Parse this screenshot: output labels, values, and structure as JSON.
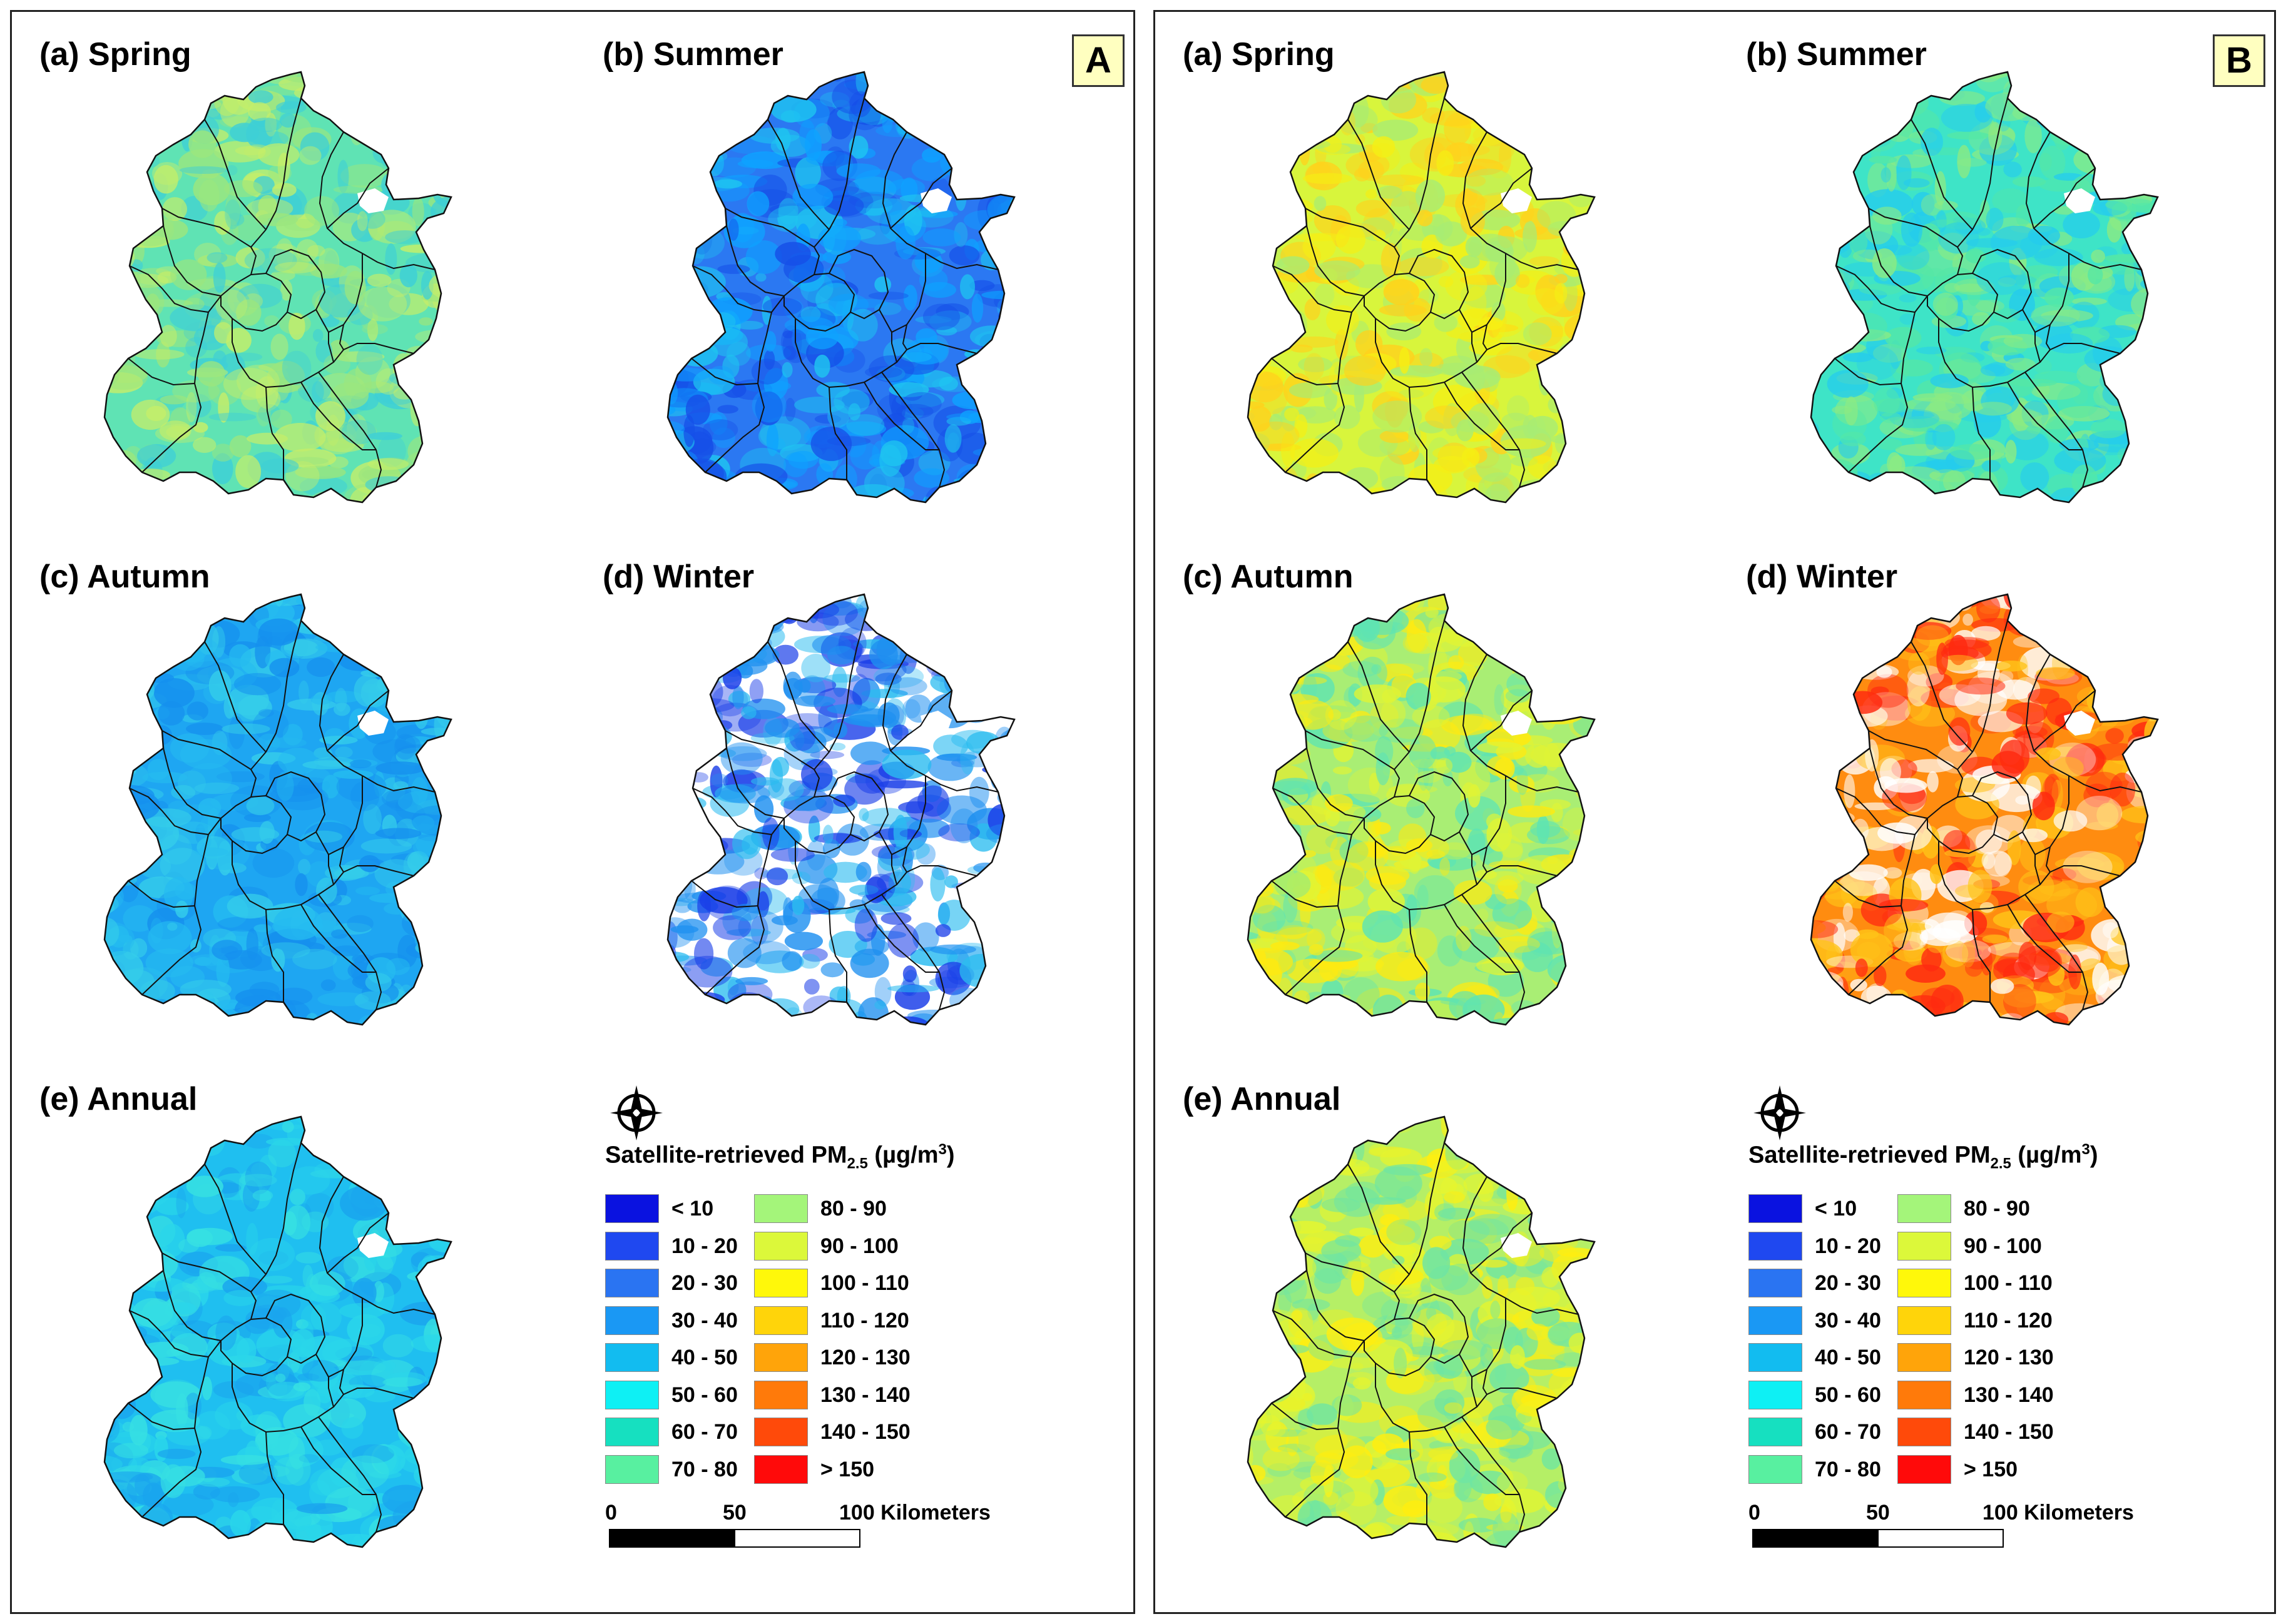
{
  "panels": [
    {
      "id": "A",
      "label": "A",
      "maps": [
        {
          "title": "(a) Spring",
          "colors": [
            "#5fe3b4",
            "#9be67e",
            "#3ecfd6",
            "#c4ee6a"
          ]
        },
        {
          "title": "(b) Summer",
          "colors": [
            "#2b78f2",
            "#0ea2ff",
            "#1fc4f0",
            "#1650e8"
          ]
        },
        {
          "title": "(c) Autumn",
          "colors": [
            "#1ea6f2",
            "#25bbf0",
            "#1590ee",
            "#35cdea"
          ]
        },
        {
          "title": "(d) Winter",
          "colors": [
            "#ffffff",
            "#1f90f0",
            "#2bbcf0",
            "#1a3ee8"
          ]
        },
        {
          "title": "(e) Annual",
          "colors": [
            "#1fbff0",
            "#2ad6ea",
            "#1aa4ee",
            "#37e0e2"
          ]
        }
      ]
    },
    {
      "id": "B",
      "label": "B",
      "maps": [
        {
          "title": "(a) Spring",
          "colors": [
            "#d8f53c",
            "#f5ef14",
            "#a7ec74",
            "#ffd21c"
          ]
        },
        {
          "title": "(b) Summer",
          "colors": [
            "#3ee4c7",
            "#55e7a6",
            "#25ccec",
            "#8deb82"
          ]
        },
        {
          "title": "(c) Autumn",
          "colors": [
            "#a9ee74",
            "#e0f435",
            "#5ee4b3",
            "#ffea10"
          ]
        },
        {
          "title": "(d) Winter",
          "colors": [
            "#ff8c10",
            "#ffffff",
            "#ff2a10",
            "#ffc418"
          ]
        },
        {
          "title": "(e) Annual",
          "colors": [
            "#b5ef66",
            "#e6f52e",
            "#6fe5a3",
            "#ffee10"
          ]
        }
      ]
    }
  ],
  "legend": {
    "title_main": "Satellite-retrieved PM",
    "title_sub": "2.5",
    "title_unit": " (µg/m",
    "title_sup": "3",
    "title_close": ")",
    "classes": [
      {
        "label": "< 10",
        "color": "#0a12e0"
      },
      {
        "label": "10 - 20",
        "color": "#1f48f0"
      },
      {
        "label": "20 - 30",
        "color": "#2a74f2"
      },
      {
        "label": "30 - 40",
        "color": "#1a98f4"
      },
      {
        "label": "40 - 50",
        "color": "#12bcf0"
      },
      {
        "label": "50 - 60",
        "color": "#0ef0f4"
      },
      {
        "label": "60 - 70",
        "color": "#16e0c0"
      },
      {
        "label": "70 - 80",
        "color": "#58f0a0"
      },
      {
        "label": "80 - 90",
        "color": "#a4f57a"
      },
      {
        "label": "90 - 100",
        "color": "#dcf83a"
      },
      {
        "label": "100 - 110",
        "color": "#fff80a"
      },
      {
        "label": "110 - 120",
        "color": "#ffd40a"
      },
      {
        "label": "120 - 130",
        "color": "#ffa40a"
      },
      {
        "label": "130 - 140",
        "color": "#ff7a0a"
      },
      {
        "label": "140 - 150",
        "color": "#ff4a0a"
      },
      {
        "label": "> 150",
        "color": "#ff0a0a"
      }
    ],
    "scale": {
      "tick0": "0",
      "tick1": "50",
      "tick2": "100 Kilometers"
    }
  }
}
